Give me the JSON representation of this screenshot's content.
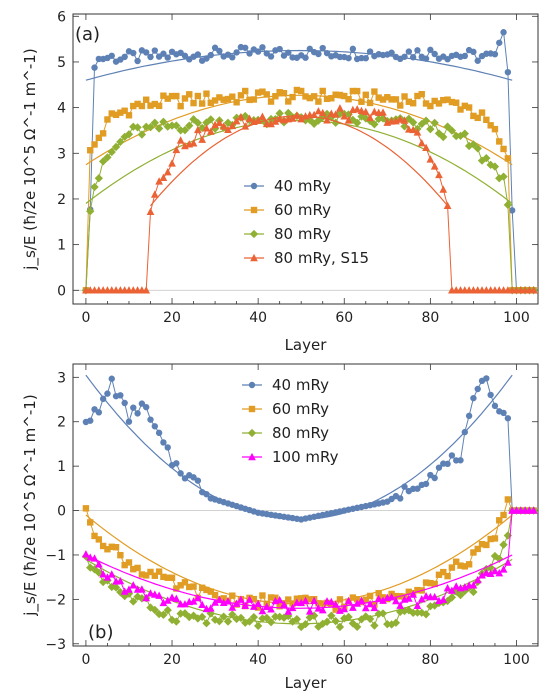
{
  "colors": {
    "blue": "#5E81B5",
    "orange": "#E19C24",
    "green": "#8FB032",
    "red": "#EB6235",
    "magenta": "#FF00FF"
  },
  "chart_data": [
    {
      "type": "line",
      "panel_label": "(a)",
      "xlabel": "Layer",
      "ylabel": "j_s/E (ħ/2e 10^5 Ω^-1 m^-1)",
      "xlim": [
        -3,
        105
      ],
      "ylim": [
        -0.3,
        6.05
      ],
      "xticks": [
        "0",
        "20",
        "40",
        "60",
        "80",
        "100"
      ],
      "yticks": [
        "0",
        "1",
        "2",
        "3",
        "4",
        "5",
        "6"
      ],
      "legend_position": "center",
      "series": [
        {
          "name": "40 mRy",
          "marker": "circle",
          "color": "#5E81B5",
          "levels": [
            [
              0,
              0
            ],
            [
              1,
              1.65
            ],
            [
              2,
              5.0
            ],
            [
              4,
              5.1
            ],
            [
              10,
              5.1
            ],
            [
              20,
              5.15
            ],
            [
              40,
              5.2
            ],
            [
              60,
              5.2
            ],
            [
              80,
              5.2
            ],
            [
              95,
              5.1
            ],
            [
              96,
              5.3
            ],
            [
              97,
              5.75
            ],
            [
              98,
              4.9
            ],
            [
              99,
              1.75
            ],
            [
              100,
              0
            ],
            [
              104,
              0
            ]
          ],
          "fit": {
            "center": 49.5,
            "peak": 5.25,
            "edge_value": 4.6,
            "range": [
              0,
              99
            ]
          }
        },
        {
          "name": "60 mRy",
          "marker": "square",
          "color": "#E19C24",
          "levels": [
            [
              0,
              0
            ],
            [
              1,
              3.0
            ],
            [
              3,
              3.35
            ],
            [
              6,
              3.8
            ],
            [
              12,
              4.05
            ],
            [
              20,
              4.15
            ],
            [
              40,
              4.25
            ],
            [
              60,
              4.25
            ],
            [
              80,
              4.15
            ],
            [
              88,
              4.05
            ],
            [
              93,
              3.7
            ],
            [
              96,
              3.3
            ],
            [
              97,
              3.0
            ],
            [
              98,
              2.9
            ],
            [
              99,
              0
            ],
            [
              104,
              0
            ]
          ],
          "fit": {
            "center": 49.5,
            "peak": 4.27,
            "edge_value": 2.75,
            "range": [
              0,
              99
            ]
          }
        },
        {
          "name": "80 mRy",
          "marker": "diamond",
          "color": "#8FB032",
          "levels": [
            [
              0,
              0
            ],
            [
              1,
              1.85
            ],
            [
              2,
              2.3
            ],
            [
              5,
              2.9
            ],
            [
              10,
              3.45
            ],
            [
              20,
              3.6
            ],
            [
              40,
              3.75
            ],
            [
              60,
              3.75
            ],
            [
              80,
              3.6
            ],
            [
              88,
              3.3
            ],
            [
              93,
              2.85
            ],
            [
              97,
              2.5
            ],
            [
              98,
              1.75
            ],
            [
              99,
              0
            ],
            [
              104,
              0
            ]
          ],
          "fit": {
            "center": 49.5,
            "peak": 3.72,
            "edge_value": 1.9,
            "range": [
              0,
              99
            ]
          }
        },
        {
          "name": "80 mRy, S15",
          "marker": "triangle",
          "color": "#EB6235",
          "levels": [
            [
              0,
              0
            ],
            [
              14,
              0
            ],
            [
              15,
              1.8
            ],
            [
              17,
              2.4
            ],
            [
              22,
              3.2
            ],
            [
              30,
              3.55
            ],
            [
              40,
              3.75
            ],
            [
              60,
              3.85
            ],
            [
              70,
              3.8
            ],
            [
              76,
              3.5
            ],
            [
              80,
              3.0
            ],
            [
              84,
              1.9
            ],
            [
              85,
              0
            ],
            [
              104,
              0
            ]
          ],
          "fit": {
            "center": 49.5,
            "peak": 3.82,
            "edge_value": 1.85,
            "range": [
              15,
              84
            ]
          }
        }
      ]
    },
    {
      "type": "line",
      "panel_label": "(b)",
      "xlabel": "Layer",
      "ylabel": "j_s/E (ħ/2e 10^5 Ω^-1 m^-1)",
      "xlim": [
        -3,
        105
      ],
      "ylim": [
        -3.05,
        3.3
      ],
      "xticks": [
        "0",
        "20",
        "40",
        "60",
        "80",
        "100"
      ],
      "yticks": [
        "-3",
        "-2",
        "-1",
        "0",
        "1",
        "2",
        "3"
      ],
      "legend_position": "top-center",
      "series": [
        {
          "name": "40 mRy",
          "marker": "circle",
          "color": "#5E81B5",
          "levels": [
            [
              0,
              2.1
            ],
            [
              3,
              2.2
            ],
            [
              6,
              2.9
            ],
            [
              10,
              2.1
            ],
            [
              13,
              2.4
            ],
            [
              20,
              1.1
            ],
            [
              30,
              0.25
            ],
            [
              40,
              -0.05
            ],
            [
              50,
              -0.2
            ],
            [
              60,
              0
            ],
            [
              70,
              0.2
            ],
            [
              80,
              0.8
            ],
            [
              87,
              1.25
            ],
            [
              90,
              2.4
            ],
            [
              93,
              3.0
            ],
            [
              96,
              2.2
            ],
            [
              98,
              2.2
            ],
            [
              99,
              0
            ],
            [
              104,
              0
            ]
          ],
          "fit": {
            "center": 49.5,
            "peak": -0.2,
            "edge_value": 3.05,
            "range": [
              0,
              99
            ]
          }
        },
        {
          "name": "60 mRy",
          "marker": "square",
          "color": "#E19C24",
          "levels": [
            [
              0,
              0.05
            ],
            [
              1,
              -0.4
            ],
            [
              5,
              -0.75
            ],
            [
              10,
              -1.2
            ],
            [
              20,
              -1.65
            ],
            [
              30,
              -1.95
            ],
            [
              40,
              -2.05
            ],
            [
              60,
              -2.1
            ],
            [
              70,
              -1.95
            ],
            [
              80,
              -1.6
            ],
            [
              90,
              -1.05
            ],
            [
              95,
              -0.6
            ],
            [
              97,
              -0.1
            ],
            [
              98,
              0.25
            ],
            [
              99,
              0
            ],
            [
              104,
              0
            ]
          ],
          "fit": {
            "center": 49.5,
            "peak": -2.1,
            "edge_value": -0.1,
            "range": [
              0,
              99
            ]
          }
        },
        {
          "name": "80 mRy",
          "marker": "diamond",
          "color": "#8FB032",
          "levels": [
            [
              0,
              -1.15
            ],
            [
              2,
              -1.3
            ],
            [
              5,
              -1.6
            ],
            [
              10,
              -1.95
            ],
            [
              20,
              -2.35
            ],
            [
              30,
              -2.45
            ],
            [
              40,
              -2.5
            ],
            [
              60,
              -2.5
            ],
            [
              70,
              -2.45
            ],
            [
              80,
              -2.2
            ],
            [
              90,
              -1.75
            ],
            [
              96,
              -0.95
            ],
            [
              98,
              -0.65
            ],
            [
              99,
              0
            ],
            [
              104,
              0
            ]
          ],
          "fit": {
            "center": 49.5,
            "peak": -2.55,
            "edge_value": -1.1,
            "range": [
              0,
              99
            ]
          }
        },
        {
          "name": "100 mRy",
          "marker": "triangle",
          "color": "#FF00FF",
          "levels": [
            [
              0,
              -1.05
            ],
            [
              3,
              -1.3
            ],
            [
              8,
              -1.65
            ],
            [
              15,
              -1.95
            ],
            [
              25,
              -2.1
            ],
            [
              40,
              -2.15
            ],
            [
              60,
              -2.15
            ],
            [
              75,
              -2.05
            ],
            [
              85,
              -1.85
            ],
            [
              92,
              -1.55
            ],
            [
              96,
              -1.3
            ],
            [
              98,
              -1.1
            ],
            [
              99,
              0
            ],
            [
              104,
              0
            ]
          ],
          "fit": {
            "center": 49.5,
            "peak": -2.2,
            "edge_value": -1.0,
            "range": [
              0,
              99
            ]
          }
        }
      ]
    }
  ]
}
